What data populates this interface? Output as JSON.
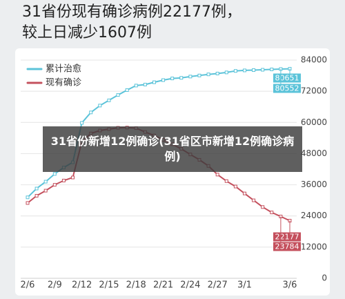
{
  "chart_data": {
    "type": "line",
    "title": "31省份现有确诊病例22177例，",
    "subtitle": "较上日减少1607例",
    "banner": "31省份新增12例确诊(31省区市新增12例确诊病例)",
    "categories": [
      "2/6",
      null,
      null,
      "2/9",
      null,
      null,
      "2/12",
      null,
      null,
      "2/15",
      null,
      null,
      "2/18",
      null,
      null,
      "2/21",
      null,
      null,
      "2/24",
      null,
      null,
      "2/27",
      null,
      null,
      "3/1",
      null,
      null,
      null,
      null,
      "3/6"
    ],
    "series": [
      {
        "name": "累计治愈",
        "color": "#5bc3d9",
        "values": [
          31161,
          34546,
          37198,
          40171,
          42638,
          44653,
          59804,
          63851,
          66492,
          68500,
          70548,
          72436,
          74185,
          74576,
          75465,
          76288,
          76936,
          77150,
          77658,
          78064,
          78497,
          78824,
          79251,
          79824,
          80026,
          80151,
          80270,
          80409,
          80552,
          80651
        ]
      },
      {
        "name": "现有确诊",
        "color": "#c4505d",
        "values": [
          28985,
          31774,
          33738,
          35982,
          37626,
          38800,
          52526,
          55748,
          56873,
          57416,
          57934,
          58016,
          57805,
          56303,
          54965,
          53284,
          51606,
          49824,
          47672,
          45604,
          43258,
          39919,
          37414,
          35329,
          32652,
          30004,
          27433,
          25352,
          23784,
          22177
        ]
      }
    ],
    "ylim": [
      0,
      84000
    ],
    "yticks": [
      0,
      12000,
      24000,
      36000,
      48000,
      60000,
      72000,
      84000
    ],
    "grid": true,
    "legend": "top-left"
  }
}
